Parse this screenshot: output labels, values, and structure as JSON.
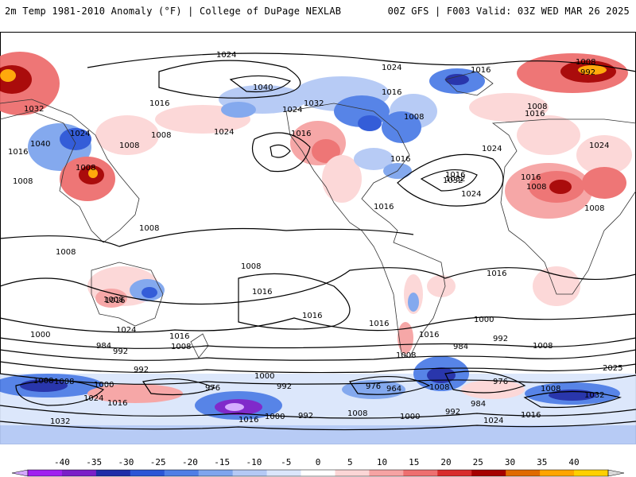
{
  "header": {
    "left_title": "2m Temp 1981-2010 Anomaly (°F) | College of DuPage NEXLAB",
    "right_title": "00Z GFS | F003 Valid: 03Z WED MAR 26 2025"
  },
  "map": {
    "fields": [
      "2m temperature anomaly (shaded)",
      "mean sea level pressure (contours)"
    ],
    "isobar_labels": [
      {
        "text": "1024"
      },
      {
        "text": "1024"
      },
      {
        "text": "1008"
      },
      {
        "text": "992"
      },
      {
        "text": "1016"
      },
      {
        "text": "1040"
      },
      {
        "text": "1032"
      },
      {
        "text": "1016"
      },
      {
        "text": "1024"
      },
      {
        "text": "1032"
      },
      {
        "text": "1016"
      },
      {
        "text": "1008"
      },
      {
        "text": "1008"
      },
      {
        "text": "1024"
      },
      {
        "text": "1016"
      },
      {
        "text": "1016"
      },
      {
        "text": "1016"
      },
      {
        "text": "1032"
      },
      {
        "text": "1008"
      },
      {
        "text": "1008"
      },
      {
        "text": "1040"
      },
      {
        "text": "1016"
      },
      {
        "text": "1024"
      },
      {
        "text": "1008"
      },
      {
        "text": "1008"
      },
      {
        "text": "1016"
      },
      {
        "text": "1024"
      },
      {
        "text": "1024"
      },
      {
        "text": "1032"
      },
      {
        "text": "1024"
      },
      {
        "text": "1008"
      },
      {
        "text": "1016"
      },
      {
        "text": "1016"
      },
      {
        "text": "1008"
      },
      {
        "text": "1008"
      },
      {
        "text": "1008"
      },
      {
        "text": "1008"
      },
      {
        "text": "1016"
      },
      {
        "text": "1016"
      },
      {
        "text": "1008"
      },
      {
        "text": "1016"
      },
      {
        "text": "1016"
      },
      {
        "text": "1024"
      },
      {
        "text": "1016"
      },
      {
        "text": "1000"
      },
      {
        "text": "1016"
      },
      {
        "text": "1016"
      },
      {
        "text": "1000"
      },
      {
        "text": "1008"
      },
      {
        "text": "992"
      },
      {
        "text": "984"
      },
      {
        "text": "992"
      },
      {
        "text": "1008"
      },
      {
        "text": "984"
      },
      {
        "text": "1008"
      },
      {
        "text": "992"
      },
      {
        "text": "1008"
      },
      {
        "text": "1000"
      },
      {
        "text": "976"
      },
      {
        "text": "1000"
      },
      {
        "text": "992"
      },
      {
        "text": "976"
      },
      {
        "text": "964"
      },
      {
        "text": "976"
      },
      {
        "text": "2025"
      },
      {
        "text": "1008"
      },
      {
        "text": "1024"
      },
      {
        "text": "1016"
      },
      {
        "text": "1032"
      },
      {
        "text": "1016"
      },
      {
        "text": "1000"
      },
      {
        "text": "992"
      },
      {
        "text": "1008"
      },
      {
        "text": "1000"
      },
      {
        "text": "992"
      },
      {
        "text": "984"
      },
      {
        "text": "1024"
      },
      {
        "text": "1016"
      },
      {
        "text": "1032"
      },
      {
        "text": "1008"
      },
      {
        "text": "1008"
      }
    ]
  },
  "colorbar": {
    "labels": [
      "-40",
      "-35",
      "-30",
      "-25",
      "-20",
      "-15",
      "-10",
      "-5",
      "0",
      "5",
      "10",
      "15",
      "20",
      "25",
      "30",
      "35",
      "40"
    ],
    "colors": [
      "#d4a8ff",
      "#a020f0",
      "#7a1fc8",
      "#1e2ca8",
      "#2a55d6",
      "#4f7ee6",
      "#7ea5ee",
      "#b4c9f5",
      "#dbe6fb",
      "#ffffff",
      "#fcd6d6",
      "#f6a3a3",
      "#ee6f6f",
      "#d82c2c",
      "#a60000",
      "#e06a00",
      "#ffa500",
      "#ffd000",
      "#d9d9d9"
    ]
  }
}
